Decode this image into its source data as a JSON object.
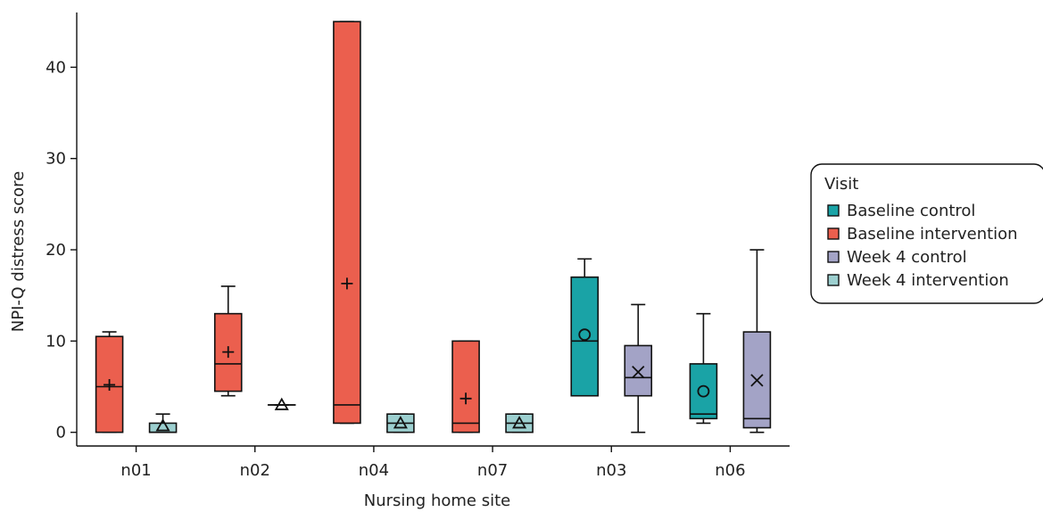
{
  "chart_data": {
    "type": "box",
    "title": "",
    "xlabel": "Nursing home site",
    "ylabel": "NPI-Q distress score",
    "ylim": [
      -1.5,
      46
    ],
    "yticks": [
      0,
      10,
      20,
      30,
      40
    ],
    "categories": [
      "n01",
      "n02",
      "n04",
      "n07",
      "n03",
      "n06"
    ],
    "legend": {
      "title": "Visit",
      "placement": "right",
      "entries": [
        {
          "key": "bc",
          "label": "Baseline control",
          "color": "#1aa3a6",
          "marker": "circle"
        },
        {
          "key": "bi",
          "label": "Baseline intervention",
          "color": "#eb5f4e",
          "marker": "plus"
        },
        {
          "key": "wc",
          "label": "Week 4 control",
          "color": "#a3a3c6",
          "marker": "x"
        },
        {
          "key": "wi",
          "label": "Week 4 intervention",
          "color": "#9ccfcf",
          "marker": "triangle"
        }
      ]
    },
    "boxes": [
      {
        "category": "n01",
        "group": "bi",
        "min": 0,
        "q1": 0,
        "median": 5,
        "q3": 10.5,
        "max": 11,
        "mean": 5.2
      },
      {
        "category": "n01",
        "group": "wi",
        "min": 0,
        "q1": 0,
        "median": 0,
        "q3": 1,
        "max": 2,
        "mean": 0.7
      },
      {
        "category": "n02",
        "group": "bi",
        "min": 4,
        "q1": 4.5,
        "median": 7.5,
        "q3": 13,
        "max": 16,
        "mean": 8.8
      },
      {
        "category": "n02",
        "group": "wi",
        "min": 3,
        "q1": 3,
        "median": 3,
        "q3": 3,
        "max": 3,
        "mean": 3
      },
      {
        "category": "n04",
        "group": "bi",
        "min": 1,
        "q1": 1,
        "median": 3,
        "q3": 45,
        "max": 45,
        "mean": 16.3
      },
      {
        "category": "n04",
        "group": "wi",
        "min": 0,
        "q1": 0,
        "median": 1,
        "q3": 2,
        "max": 2,
        "mean": 1
      },
      {
        "category": "n07",
        "group": "bi",
        "min": 0,
        "q1": 0,
        "median": 1,
        "q3": 10,
        "max": 10,
        "mean": 3.7
      },
      {
        "category": "n07",
        "group": "wi",
        "min": 0,
        "q1": 0,
        "median": 1,
        "q3": 2,
        "max": 2,
        "mean": 1
      },
      {
        "category": "n03",
        "group": "bc",
        "min": 4,
        "q1": 4,
        "median": 10,
        "q3": 17,
        "max": 19,
        "mean": 10.7
      },
      {
        "category": "n03",
        "group": "wc",
        "min": 0,
        "q1": 4,
        "median": 6,
        "q3": 9.5,
        "max": 14,
        "mean": 6.6
      },
      {
        "category": "n06",
        "group": "bc",
        "min": 1,
        "q1": 1.5,
        "median": 2,
        "q3": 7.5,
        "max": 13,
        "mean": 4.5
      },
      {
        "category": "n06",
        "group": "wc",
        "min": 0,
        "q1": 0.5,
        "median": 1.5,
        "q3": 11,
        "max": 20,
        "mean": 5.7
      }
    ]
  }
}
